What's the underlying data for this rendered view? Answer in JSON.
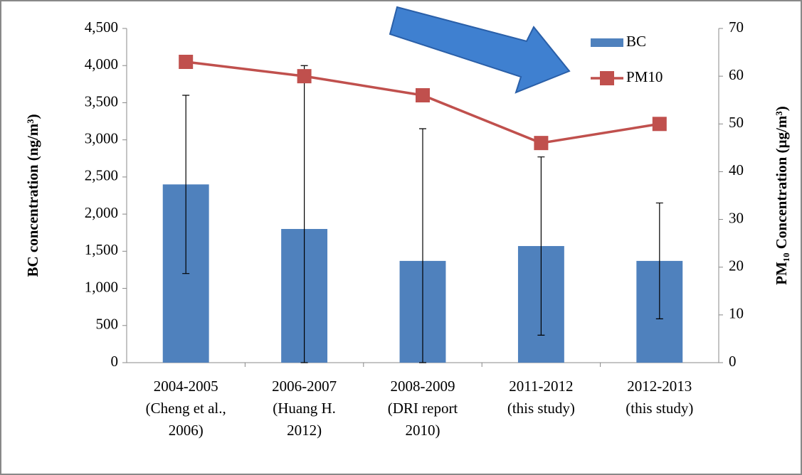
{
  "chart_data": {
    "type": "bar_line",
    "categories": [
      [
        "2004-2005",
        "(Cheng et al.,",
        "2006)"
      ],
      [
        "2006-2007",
        "(Huang H.",
        "2012)"
      ],
      [
        "2008-2009",
        "(DRI report",
        "2010)"
      ],
      [
        "2011-2012",
        "(this study)"
      ],
      [
        "2012-2013",
        "(this study)"
      ]
    ],
    "series": [
      {
        "name": "BC",
        "type": "bar",
        "color": "#4f81bd",
        "values": [
          2400,
          1800,
          1370,
          1570,
          1370
        ],
        "errors": [
          1200,
          2200,
          1780,
          1200,
          780
        ]
      },
      {
        "name": "PM10",
        "type": "line",
        "axis": "y2",
        "color": "#c0504d",
        "values": [
          63,
          60,
          56,
          46,
          50
        ]
      }
    ],
    "ylabel": "BC concentration (ng/m³)",
    "y2label": "PM₁₀ Concentration (µg/m³)",
    "ylim": [
      0,
      4500
    ],
    "yticks": [
      0,
      500,
      {
        "value": 1000,
        "label": "1,000"
      },
      {
        "value": 1500,
        "label": "1,500"
      },
      {
        "value": 2000,
        "label": "2,000"
      },
      {
        "value": 2500,
        "label": "2,500"
      },
      {
        "value": 3000,
        "label": "3,000"
      },
      {
        "value": 3500,
        "label": "3,500"
      },
      {
        "value": 4000,
        "label": "4,000"
      },
      {
        "value": 4500,
        "label": "4,500"
      }
    ],
    "y2lim": [
      0,
      70
    ],
    "y2ticks": [
      0,
      10,
      20,
      30,
      40,
      50,
      60,
      70
    ],
    "legend": "top-right"
  }
}
